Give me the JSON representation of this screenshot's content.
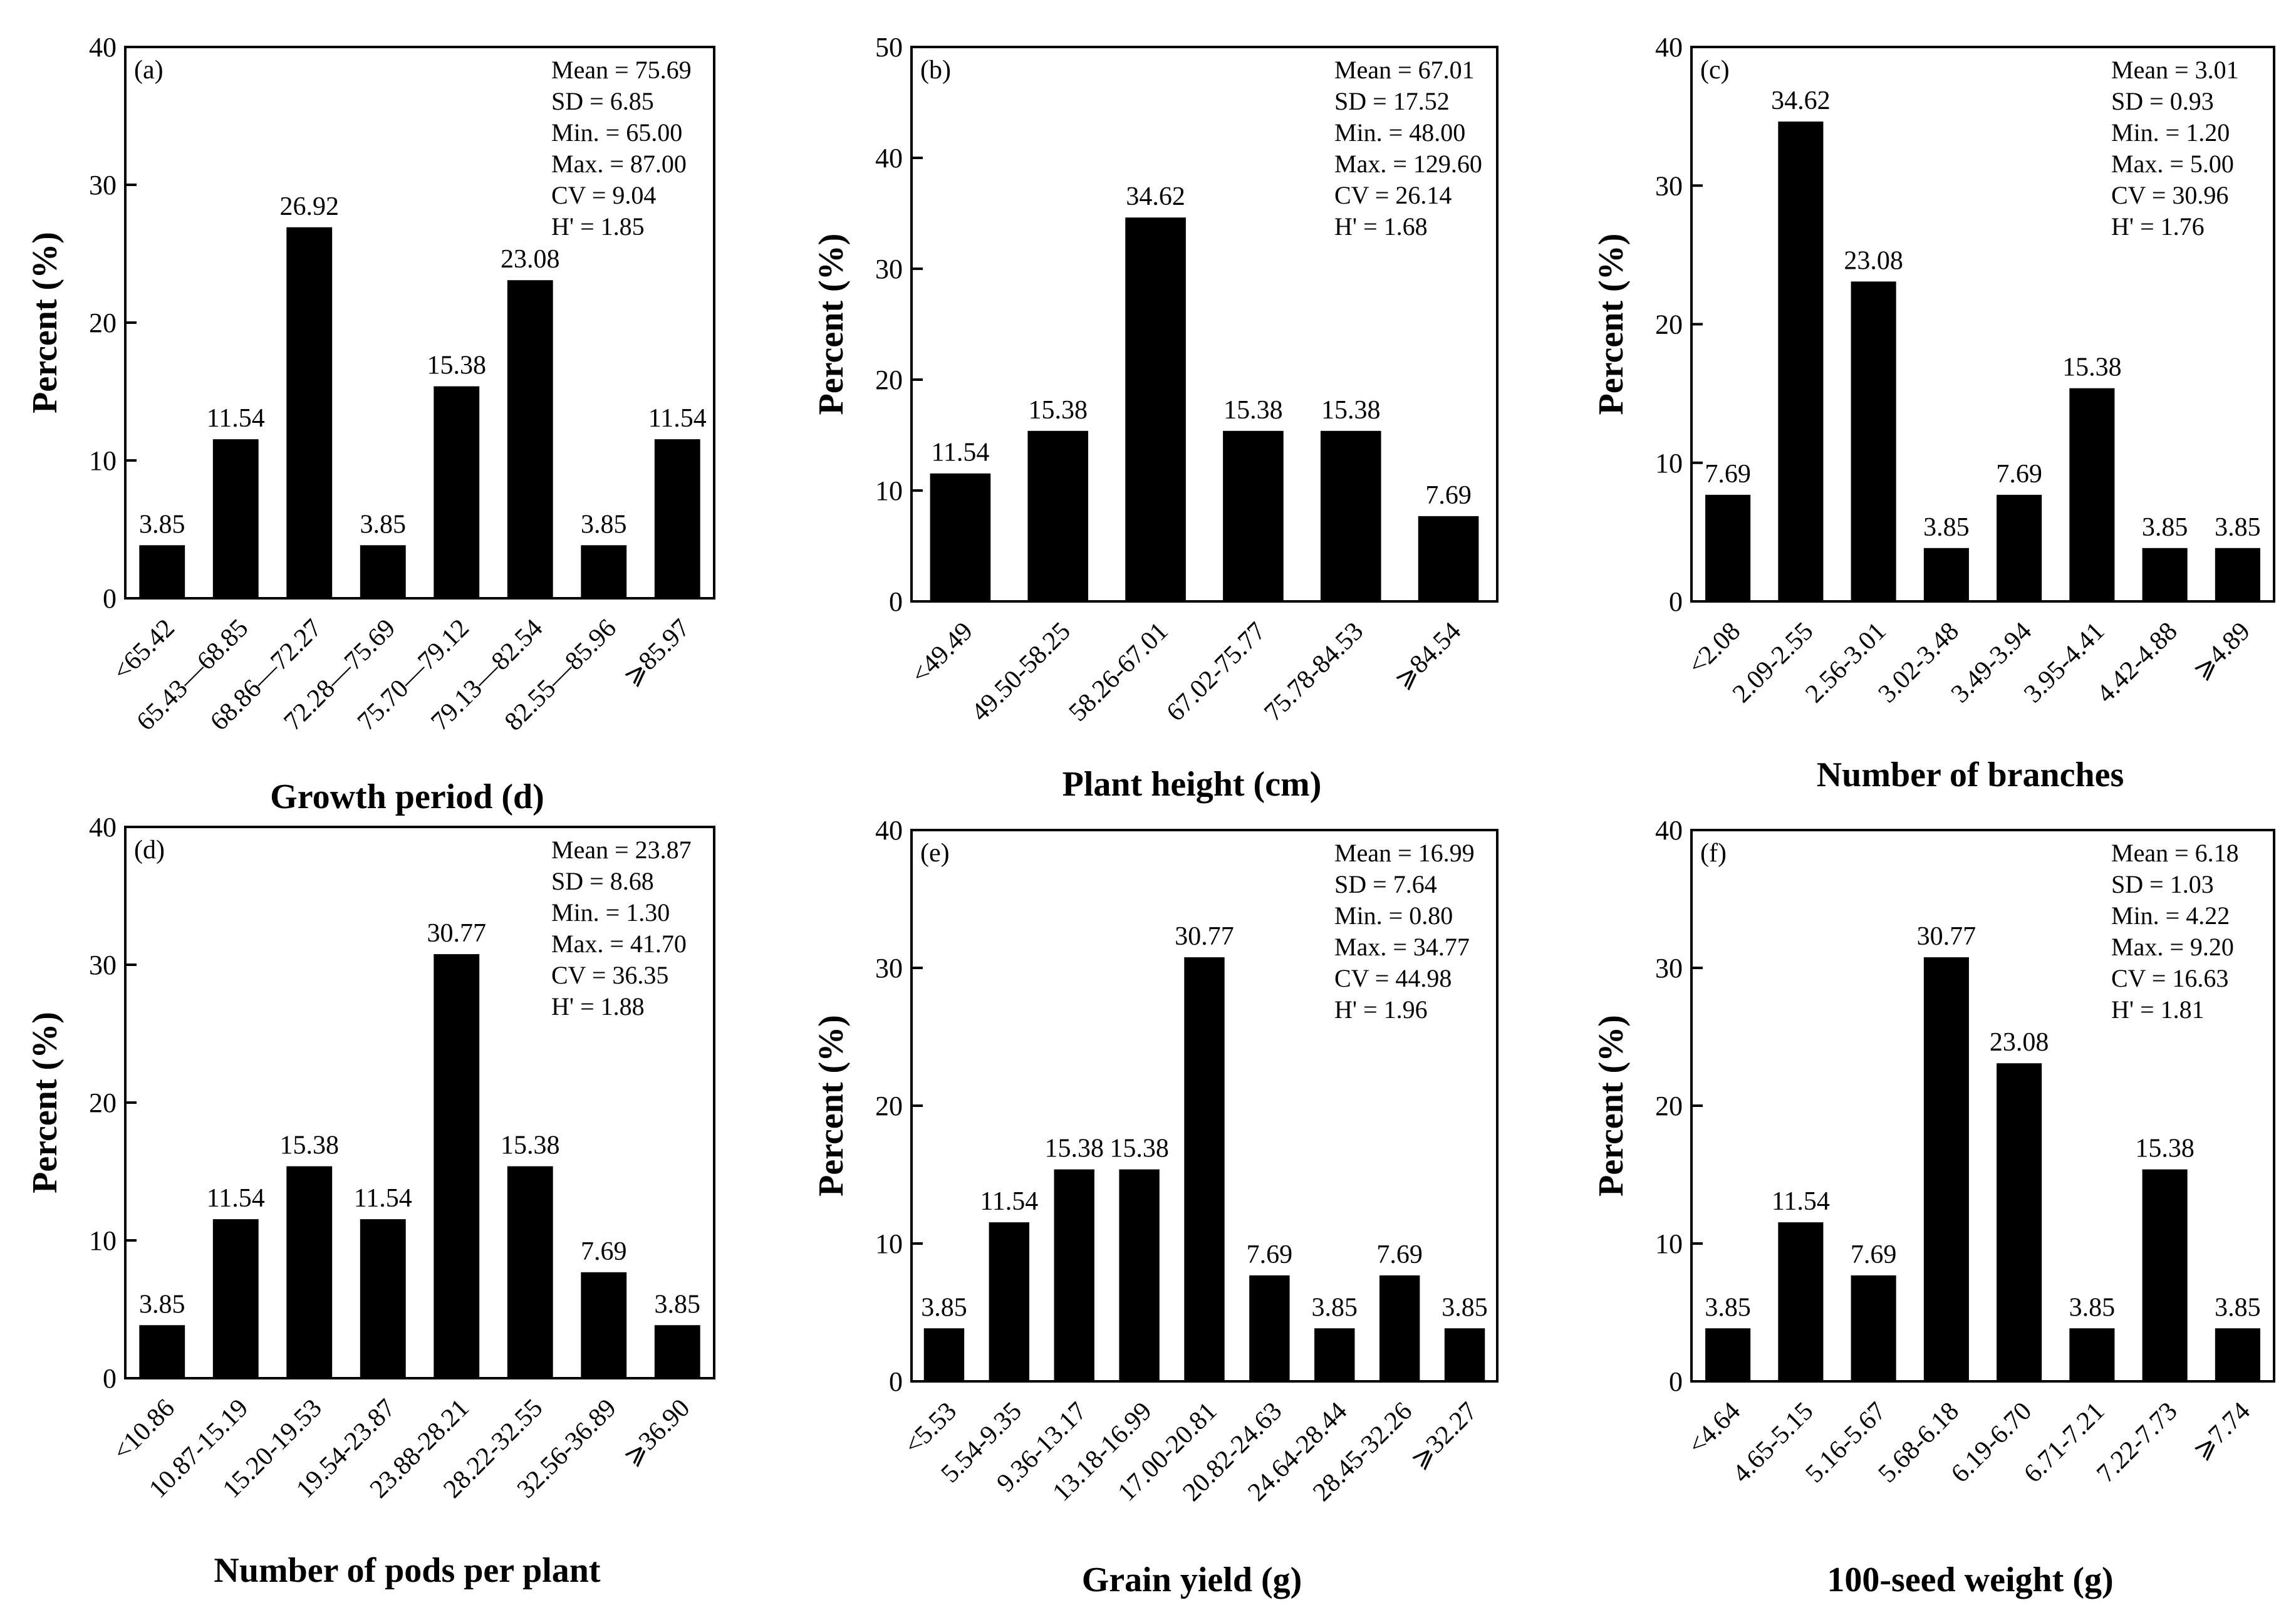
{
  "chart_data": [
    {
      "type": "bar",
      "panel": "(a)",
      "title": "",
      "xlabel": "Growth period (d)",
      "ylabel": "Percent (%)",
      "ylim": [
        0,
        40
      ],
      "yticks": [
        "0",
        "10",
        "20",
        "30",
        "40"
      ],
      "categories": [
        "<65.42",
        "65.43—68.85",
        "68.86—72.27",
        "72.28—75.69",
        "75.70—79.12",
        "79.13—82.54",
        "82.55—85.96",
        "⩾85.97"
      ],
      "values": [
        3.85,
        11.54,
        26.92,
        3.85,
        15.38,
        23.08,
        3.85,
        11.54
      ],
      "labels": [
        "3.85",
        "11.54",
        "26.92",
        "3.85",
        "15.38",
        "23.08",
        "3.85",
        "11.54"
      ],
      "stats": [
        "Mean = 75.69",
        "SD = 6.85",
        "Min. = 65.00",
        "Max. = 87.00",
        "CV = 9.04",
        "H' = 1.85"
      ]
    },
    {
      "type": "bar",
      "panel": "(b)",
      "title": "",
      "xlabel": "Plant height (cm)",
      "ylabel": "Percent (%)",
      "ylim": [
        0,
        50
      ],
      "yticks": [
        "0",
        "10",
        "20",
        "30",
        "40",
        "50"
      ],
      "categories": [
        "<49.49",
        "49.50-58.25",
        "58.26-67.01",
        "67.02-75.77",
        "75.78-84.53",
        "⩾84.54"
      ],
      "values": [
        11.54,
        15.38,
        34.62,
        15.38,
        15.38,
        7.69
      ],
      "labels": [
        "11.54",
        "15.38",
        "34.62",
        "15.38",
        "15.38",
        "7.69"
      ],
      "stats": [
        "Mean = 67.01",
        "SD = 17.52",
        "Min. = 48.00",
        "Max. = 129.60",
        "CV = 26.14",
        "H' = 1.68"
      ]
    },
    {
      "type": "bar",
      "panel": "(c)",
      "title": "",
      "xlabel": "Number of branches",
      "ylabel": "Percent (%)",
      "ylim": [
        0,
        40
      ],
      "yticks": [
        "0",
        "10",
        "20",
        "30",
        "40"
      ],
      "categories": [
        "<2.08",
        "2.09-2.55",
        "2.56-3.01",
        "3.02-3.48",
        "3.49-3.94",
        "3.95-4.41",
        "4.42-4.88",
        "⩾4.89"
      ],
      "values": [
        7.69,
        34.62,
        23.08,
        3.85,
        7.69,
        15.38,
        3.85,
        3.85
      ],
      "labels": [
        "7.69",
        "34.62",
        "23.08",
        "3.85",
        "7.69",
        "15.38",
        "3.85",
        "3.85"
      ],
      "stats": [
        "Mean = 3.01",
        "SD = 0.93",
        "Min. = 1.20",
        "Max. = 5.00",
        "CV = 30.96",
        "H' = 1.76"
      ]
    },
    {
      "type": "bar",
      "panel": "(d)",
      "title": "",
      "xlabel": "Number of pods per plant",
      "ylabel": "Percent (%)",
      "ylim": [
        0,
        40
      ],
      "yticks": [
        "0",
        "10",
        "20",
        "30",
        "40"
      ],
      "categories": [
        "<10.86",
        "10.87-15.19",
        "15.20-19.53",
        "19.54-23.87",
        "23.88-28.21",
        "28.22-32.55",
        "32.56-36.89",
        "⩾36.90"
      ],
      "values": [
        3.85,
        11.54,
        15.38,
        11.54,
        30.77,
        15.38,
        7.69,
        3.85
      ],
      "labels": [
        "3.85",
        "11.54",
        "15.38",
        "11.54",
        "30.77",
        "15.38",
        "7.69",
        "3.85"
      ],
      "stats": [
        "Mean = 23.87",
        "SD = 8.68",
        "Min. = 1.30",
        "Max. = 41.70",
        "CV = 36.35",
        "H' = 1.88"
      ]
    },
    {
      "type": "bar",
      "panel": "(e)",
      "title": "",
      "xlabel": "Grain yield (g)",
      "ylabel": "Percent (%)",
      "ylim": [
        0,
        40
      ],
      "yticks": [
        "0",
        "10",
        "20",
        "30",
        "40"
      ],
      "categories": [
        "<5.53",
        "5.54-9.35",
        "9.36-13.17",
        "13.18-16.99",
        "17.00-20.81",
        "20.82-24.63",
        "24.64-28.44",
        "28.45-32.26",
        "⩾32.27"
      ],
      "values": [
        3.85,
        11.54,
        15.38,
        15.38,
        30.77,
        7.69,
        3.85,
        7.69,
        3.85
      ],
      "labels": [
        "3.85",
        "11.54",
        "15.38",
        "15.38",
        "30.77",
        "7.69",
        "3.85",
        "7.69",
        "3.85"
      ],
      "stats": [
        "Mean = 16.99",
        "SD = 7.64",
        "Min. = 0.80",
        "Max. = 34.77",
        "CV = 44.98",
        "H' = 1.96"
      ]
    },
    {
      "type": "bar",
      "panel": "(f)",
      "title": "",
      "xlabel": "100-seed weight (g)",
      "ylabel": "Percent (%)",
      "ylim": [
        0,
        40
      ],
      "yticks": [
        "0",
        "10",
        "20",
        "30",
        "40"
      ],
      "categories": [
        "<4.64",
        "4.65-5.15",
        "5.16-5.67",
        "5.68-6.18",
        "6.19-6.70",
        "6.71-7.21",
        "7.22-7.73",
        "⩾7.74"
      ],
      "values": [
        3.85,
        11.54,
        7.69,
        30.77,
        23.08,
        3.85,
        15.38,
        3.85
      ],
      "labels": [
        "3.85",
        "11.54",
        "7.69",
        "30.77",
        "23.08",
        "3.85",
        "15.38",
        "3.85"
      ],
      "stats": [
        "Mean = 6.18",
        "SD = 1.03",
        "Min. = 4.22",
        "Max. = 9.20",
        "CV = 16.63",
        "H' = 1.81"
      ]
    }
  ]
}
